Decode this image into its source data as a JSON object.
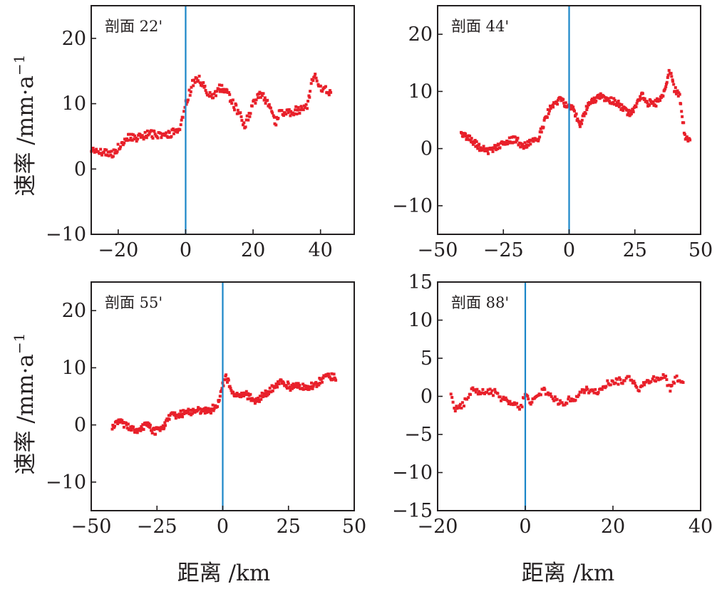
{
  "ylabel": "速率 /mm·a",
  "ylabel_sup": "−1",
  "xlabel": "距离 /km",
  "colors": {
    "series": "#e8202a",
    "fault_line": "#1a86c8",
    "axis": "#231f20"
  },
  "chart_data": [
    {
      "type": "scatter",
      "panel_label": "剖面 22'",
      "xlim": [
        -28,
        50
      ],
      "ylim": [
        -10,
        25
      ],
      "xticks": [
        -20,
        0,
        20,
        40
      ],
      "yticks": [
        -10,
        0,
        10,
        20
      ],
      "tick_labels_x": [
        "−20",
        "0",
        "20",
        "40"
      ],
      "tick_labels_y": [
        "−10",
        "0",
        "10",
        "20"
      ],
      "vline_x": 0,
      "range": [
        -28,
        43
      ],
      "profile": [
        [
          -28,
          3.0
        ],
        [
          -25,
          2.5
        ],
        [
          -22,
          2.3
        ],
        [
          -20,
          3.2
        ],
        [
          -17,
          5.0
        ],
        [
          -14,
          4.8
        ],
        [
          -11,
          5.5
        ],
        [
          -8,
          5.0
        ],
        [
          -5,
          5.2
        ],
        [
          -2,
          6.0
        ],
        [
          0,
          10.0
        ],
        [
          2,
          13.0
        ],
        [
          4,
          13.8
        ],
        [
          6,
          12.0
        ],
        [
          8,
          11.0
        ],
        [
          10,
          12.5
        ],
        [
          12,
          12.0
        ],
        [
          14,
          10.0
        ],
        [
          16,
          8.5
        ],
        [
          17.5,
          6.5
        ],
        [
          20,
          10.0
        ],
        [
          22,
          11.5
        ],
        [
          24,
          10.5
        ],
        [
          25.5,
          9.0
        ],
        [
          26.5,
          7.0
        ],
        [
          28,
          9.0
        ],
        [
          30,
          8.5
        ],
        [
          33,
          9.0
        ],
        [
          36,
          9.5
        ],
        [
          38,
          14.5
        ],
        [
          40,
          12.5
        ],
        [
          42,
          12.0
        ],
        [
          43,
          11.8
        ]
      ],
      "noise": 0.6,
      "grid": false
    },
    {
      "type": "scatter",
      "panel_label": "剖面 44'",
      "xlim": [
        -50,
        50
      ],
      "ylim": [
        -15,
        25
      ],
      "xticks": [
        -50,
        -25,
        0,
        25,
        50
      ],
      "yticks": [
        -10,
        0,
        10,
        20
      ],
      "tick_labels_x": [
        "−50",
        "−25",
        "0",
        "25",
        "50"
      ],
      "tick_labels_y": [
        "−10",
        "0",
        "10",
        "20"
      ],
      "vline_x": 0,
      "range": [
        -41,
        46
      ],
      "profile": [
        [
          -41,
          2.5
        ],
        [
          -38,
          2.0
        ],
        [
          -35,
          0.5
        ],
        [
          -31,
          -0.5
        ],
        [
          -27,
          0.5
        ],
        [
          -22,
          1.5
        ],
        [
          -20,
          1.5
        ],
        [
          -18,
          0.5
        ],
        [
          -15,
          1.0
        ],
        [
          -12,
          1.5
        ],
        [
          -10,
          4.0
        ],
        [
          -7,
          7.5
        ],
        [
          -4,
          8.5
        ],
        [
          -2,
          8.0
        ],
        [
          0,
          7.5
        ],
        [
          2,
          6.5
        ],
        [
          4,
          4.0
        ],
        [
          6,
          6.5
        ],
        [
          9,
          8.5
        ],
        [
          12,
          9.0
        ],
        [
          15,
          8.5
        ],
        [
          18,
          8.0
        ],
        [
          21,
          7.0
        ],
        [
          23,
          6.0
        ],
        [
          26,
          8.0
        ],
        [
          28,
          9.5
        ],
        [
          30,
          8.0
        ],
        [
          33,
          8.0
        ],
        [
          35,
          9.0
        ],
        [
          37,
          11.0
        ],
        [
          38,
          14.0
        ],
        [
          40,
          10.5
        ],
        [
          42,
          9.0
        ],
        [
          43,
          6.0
        ],
        [
          44,
          2.0
        ],
        [
          45,
          1.5
        ]
      ],
      "noise": 0.6,
      "grid": false
    },
    {
      "type": "scatter",
      "panel_label": "剖面 55'",
      "xlim": [
        -50,
        50
      ],
      "ylim": [
        -15,
        25
      ],
      "xticks": [
        -50,
        -25,
        0,
        25,
        50
      ],
      "yticks": [
        -10,
        0,
        10,
        20
      ],
      "tick_labels_x": [
        "−50",
        "−25",
        "0",
        "25",
        "50"
      ],
      "tick_labels_y": [
        "−10",
        "0",
        "10",
        "20"
      ],
      "vline_x": 0,
      "range": [
        -42,
        43
      ],
      "profile": [
        [
          -42,
          -0.5
        ],
        [
          -39,
          0.5
        ],
        [
          -35,
          -0.5
        ],
        [
          -32,
          -1.0
        ],
        [
          -29,
          0.0
        ],
        [
          -26,
          -1.2
        ],
        [
          -23,
          -0.5
        ],
        [
          -20,
          1.5
        ],
        [
          -15,
          2.0
        ],
        [
          -10,
          2.5
        ],
        [
          -5,
          2.5
        ],
        [
          -2,
          3.5
        ],
        [
          0,
          7.0
        ],
        [
          1,
          8.5
        ],
        [
          3,
          6.5
        ],
        [
          5,
          5.0
        ],
        [
          8,
          5.5
        ],
        [
          10,
          5.0
        ],
        [
          12,
          4.0
        ],
        [
          15,
          5.0
        ],
        [
          18,
          6.0
        ],
        [
          20,
          7.0
        ],
        [
          23,
          7.5
        ],
        [
          26,
          6.5
        ],
        [
          29,
          7.0
        ],
        [
          32,
          6.5
        ],
        [
          35,
          7.0
        ],
        [
          38,
          8.0
        ],
        [
          41,
          8.5
        ],
        [
          43,
          8.3
        ]
      ],
      "noise": 0.6,
      "grid": false
    },
    {
      "type": "scatter",
      "panel_label": "剖面 88'",
      "xlim": [
        -20,
        40
      ],
      "ylim": [
        -15,
        15
      ],
      "xticks": [
        -20,
        0,
        20,
        40
      ],
      "yticks": [
        -15,
        -10,
        -5,
        0,
        5,
        10,
        15
      ],
      "tick_labels_x": [
        "−20",
        "0",
        "20",
        "40"
      ],
      "tick_labels_y": [
        "−15",
        "−10",
        "−5",
        "0",
        "5",
        "10",
        "15"
      ],
      "vline_x": 0,
      "range": [
        -17,
        36
      ],
      "profile": [
        [
          -17,
          0.0
        ],
        [
          -16,
          -1.5
        ],
        [
          -14,
          -1.0
        ],
        [
          -12,
          1.0
        ],
        [
          -10,
          0.5
        ],
        [
          -7,
          0.5
        ],
        [
          -5,
          -0.5
        ],
        [
          -3,
          -1.0
        ],
        [
          -1,
          -1.5
        ],
        [
          0,
          0.5
        ],
        [
          1,
          -1.0
        ],
        [
          3,
          0.0
        ],
        [
          4,
          1.0
        ],
        [
          6,
          0.0
        ],
        [
          8,
          -1.0
        ],
        [
          10,
          -0.5
        ],
        [
          12,
          0.0
        ],
        [
          14,
          1.0
        ],
        [
          16,
          0.5
        ],
        [
          18,
          1.5
        ],
        [
          20,
          2.0
        ],
        [
          22,
          2.0
        ],
        [
          24,
          2.5
        ],
        [
          26,
          1.0
        ],
        [
          28,
          2.0
        ],
        [
          30,
          2.5
        ],
        [
          32,
          2.5
        ],
        [
          33,
          1.0
        ],
        [
          34,
          2.0
        ],
        [
          35,
          2.5
        ],
        [
          36,
          1.5
        ]
      ],
      "noise": 0.45,
      "grid": false
    }
  ]
}
